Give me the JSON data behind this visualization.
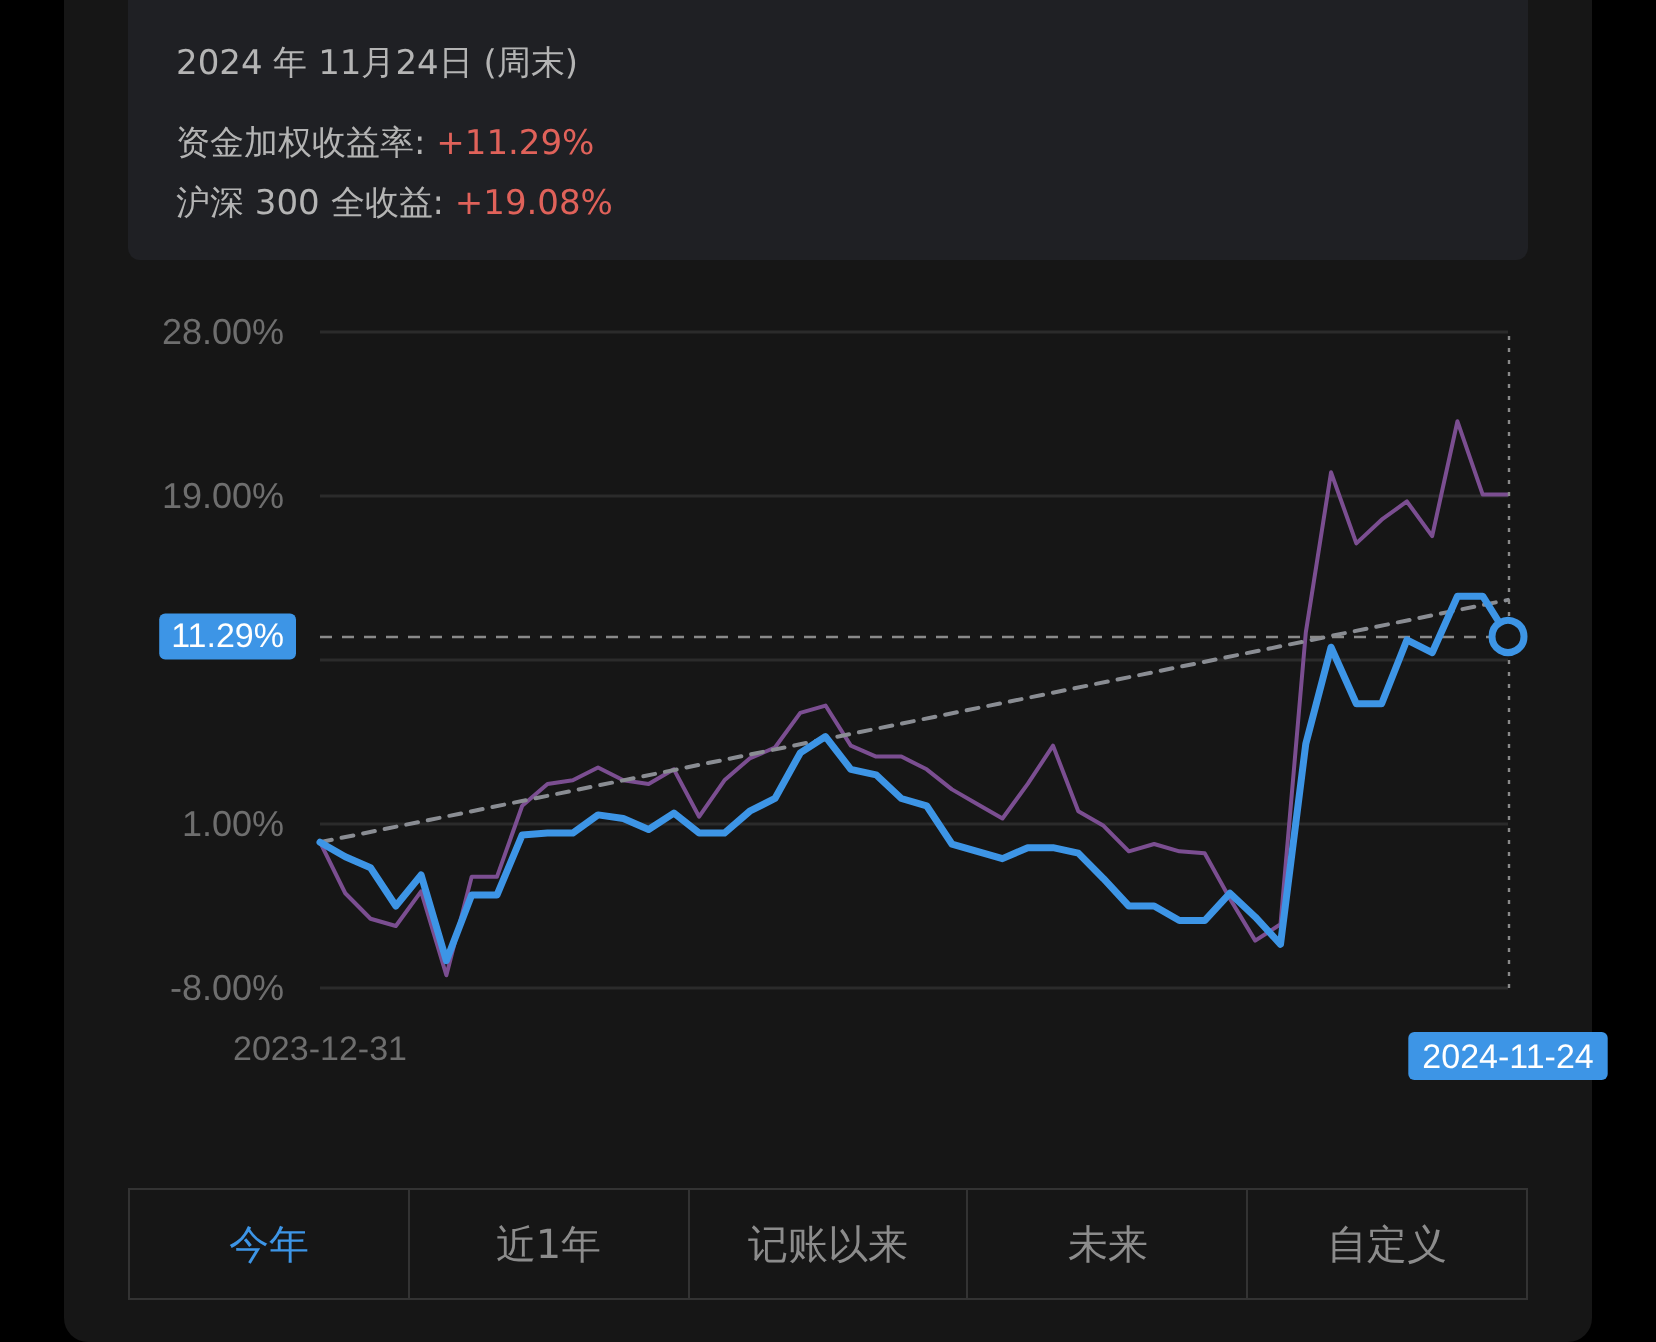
{
  "chart_data": {
    "type": "line",
    "title": "2024 年 11月24日 (周末)",
    "annotations": [
      "资金加权收益率: +11.29%",
      "沪深 300 全收益: +19.08%",
      "今年",
      "近1年",
      "记账以来",
      "未来",
      "自定义"
    ],
    "x": [
      "2023-12-31",
      "2024-01-07",
      "2024-01-14",
      "2024-01-21",
      "2024-01-28",
      "2024-02-04",
      "2024-02-11",
      "2024-02-18",
      "2024-02-25",
      "2024-03-03",
      "2024-03-10",
      "2024-03-17",
      "2024-03-24",
      "2024-03-31",
      "2024-04-07",
      "2024-04-14",
      "2024-04-21",
      "2024-04-28",
      "2024-05-05",
      "2024-05-12",
      "2024-05-19",
      "2024-05-26",
      "2024-06-02",
      "2024-06-09",
      "2024-06-16",
      "2024-06-23",
      "2024-06-30",
      "2024-07-07",
      "2024-07-14",
      "2024-07-21",
      "2024-07-28",
      "2024-08-04",
      "2024-08-11",
      "2024-08-18",
      "2024-08-25",
      "2024-09-01",
      "2024-09-08",
      "2024-09-15",
      "2024-09-22",
      "2024-09-29",
      "2024-10-06",
      "2024-10-13",
      "2024-10-20",
      "2024-10-27",
      "2024-11-03",
      "2024-11-10",
      "2024-11-17",
      "2024-11-24"
    ],
    "series": [
      {
        "color": "#7b4e91",
        "values": [
          0,
          -2.8,
          -4.2,
          -4.6,
          -2.7,
          -7.3,
          -1.9,
          -1.9,
          2.0,
          3.2,
          3.4,
          4.1,
          3.4,
          3.2,
          4.0,
          1.4,
          3.4,
          4.6,
          5.2,
          7.1,
          7.5,
          5.3,
          4.7,
          4.7,
          4.0,
          2.9,
          2.1,
          1.3,
          3.2,
          5.3,
          1.7,
          0.9,
          -0.5,
          -0.1,
          -0.5,
          -0.6,
          -3.1,
          -5.4,
          -4.5,
          11.5,
          20.3,
          16.4,
          17.7,
          18.7,
          16.8,
          23.1,
          19.08,
          19.08
        ]
      },
      {
        "color": "#3d95e6",
        "values": [
          0,
          -0.8,
          -1.4,
          -3.5,
          -1.8,
          -6.5,
          -2.9,
          -2.9,
          0.4,
          0.5,
          0.5,
          1.5,
          1.3,
          0.7,
          1.6,
          0.5,
          0.5,
          1.7,
          2.4,
          4.9,
          5.8,
          4.0,
          3.7,
          2.4,
          2.0,
          -0.1,
          -0.5,
          -0.9,
          -0.3,
          -0.3,
          -0.6,
          -2.0,
          -3.5,
          -3.5,
          -4.3,
          -4.3,
          -2.8,
          -4.1,
          -5.6,
          5.4,
          10.7,
          7.6,
          7.6,
          11.1,
          10.4,
          13.5,
          13.5,
          11.29
        ]
      },
      {
        "type": "line",
        "x": [
          "2023-12-31",
          "2024-11-24"
        ],
        "values": [
          0,
          13.3
        ],
        "color": "#8a8d93",
        "line_style": "dashed"
      }
    ],
    "xlim": [
      "2023-12-31",
      "2024-11-24"
    ],
    "xticks": [
      "2023-12-31",
      "2024-11-24"
    ],
    "ylim": [
      -8,
      28
    ],
    "yticks": [
      {
        "value": -8,
        "label": "-8.00%"
      },
      {
        "value": 1,
        "label": "1.00%"
      },
      {
        "value": 10,
        "label": null
      },
      {
        "value": 19,
        "label": "19.00%"
      },
      {
        "value": 28,
        "label": "28.00%"
      }
    ],
    "ref_lines": [
      {
        "axis": "y",
        "value": 11.29,
        "label": "11.29%",
        "color": "#8a8a8a",
        "line_style": "dashed"
      },
      {
        "axis": "x",
        "value": "2024-11-24",
        "color": "#8a8a8a",
        "line_style": "dotted"
      }
    ],
    "grid": "y",
    "line_style": "solid",
    "marker": "none"
  }
}
